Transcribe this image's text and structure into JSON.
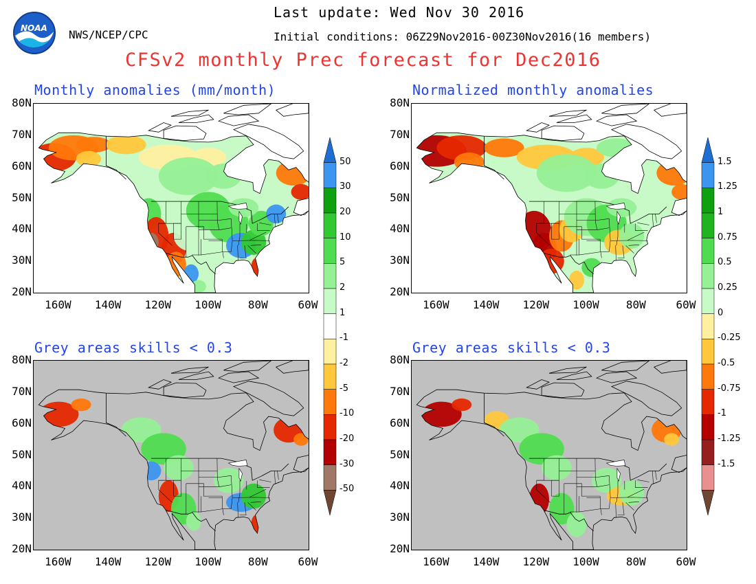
{
  "header": {
    "agency": "NWS/NCEP/CPC",
    "last_update": "Last update: Wed Nov 30 2016",
    "initial_conditions": "Initial conditions: 06Z29Nov2016-00Z30Nov2016(16 members)",
    "title": "CFSv2 monthly Prec forecast for Dec2016",
    "logo_text": "NOAA"
  },
  "panels": [
    {
      "title": "Monthly anomalies (mm/month)",
      "skill_mask": false,
      "field": "anomaly"
    },
    {
      "title": "Normalized monthly anomalies",
      "skill_mask": false,
      "field": "normalized"
    },
    {
      "title": "Grey areas skills < 0.3",
      "skill_mask": true,
      "field": "anomaly"
    },
    {
      "title": "Grey areas skills < 0.3",
      "skill_mask": true,
      "field": "normalized"
    }
  ],
  "axes": {
    "lat_labels": [
      "80N",
      "70N",
      "60N",
      "50N",
      "40N",
      "30N",
      "20N"
    ],
    "lon_labels": [
      "160W",
      "140W",
      "120W",
      "100W",
      "80W",
      "60W"
    ],
    "lat_range": [
      20,
      80
    ],
    "lon_range": [
      -170,
      -60
    ]
  },
  "colorbars": {
    "left": {
      "labels": [
        "50",
        "30",
        "20",
        "10",
        "5",
        "2",
        "1",
        "-1",
        "-2",
        "-5",
        "-10",
        "-20",
        "-30",
        "-50"
      ]
    },
    "right": {
      "labels": [
        "1.5",
        "1.25",
        "1",
        "0.75",
        "0.5",
        "0.25",
        "0",
        "-0.25",
        "-0.5",
        "-0.75",
        "-1",
        "-1.25",
        "-1.5"
      ]
    }
  },
  "colors": {
    "title_red": "#ee3333",
    "panel_title_blue": "#2244ee",
    "mask_grey": "#c0c0c0",
    "scale": [
      "#1e6ed2",
      "#3c96f0",
      "#0ea00e",
      "#32c832",
      "#50dc50",
      "#96f096",
      "#c8fac8",
      "#ffffff",
      "#fff0a0",
      "#ffc83c",
      "#ff780a",
      "#e62800",
      "#b40000",
      "#a07868",
      "#6e4632"
    ],
    "scale_right": [
      "#1e6ed2",
      "#3c96f0",
      "#0ea00e",
      "#1eb41e",
      "#50dc50",
      "#96f096",
      "#c8fac8",
      "#fff0a0",
      "#ffc83c",
      "#ff780a",
      "#e62800",
      "#b40000",
      "#961e1e",
      "#e89090",
      "#6e4632"
    ]
  }
}
